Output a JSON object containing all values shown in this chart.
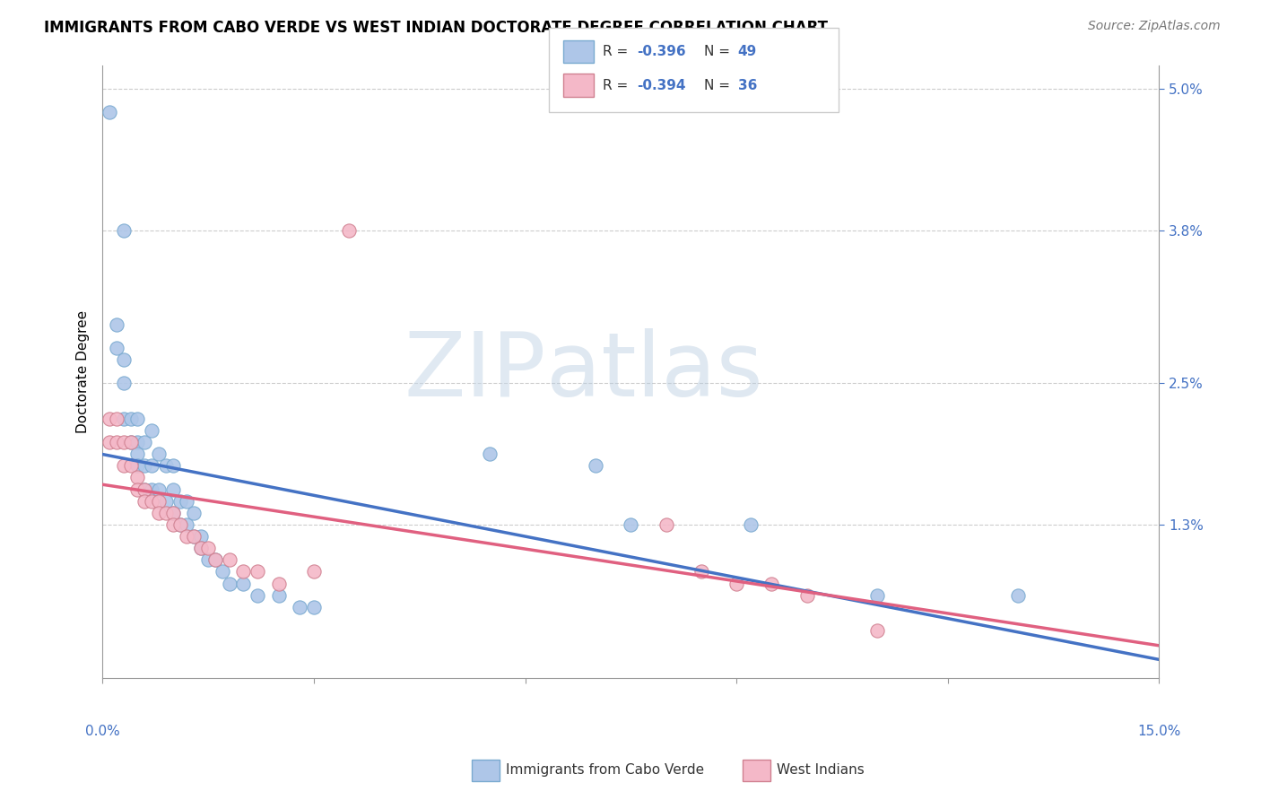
{
  "title": "IMMIGRANTS FROM CABO VERDE VS WEST INDIAN DOCTORATE DEGREE CORRELATION CHART",
  "source": "Source: ZipAtlas.com",
  "ylabel": "Doctorate Degree",
  "ytick_vals": [
    0.0,
    0.013,
    0.025,
    0.038,
    0.05
  ],
  "ytick_labels": [
    "",
    "1.3%",
    "2.5%",
    "3.8%",
    "5.0%"
  ],
  "xlim": [
    0.0,
    0.15
  ],
  "ylim": [
    0.0,
    0.052
  ],
  "color_blue": "#aec6e8",
  "color_blue_edge": "#7aaad0",
  "color_blue_line": "#4472c4",
  "color_pink": "#f4b8c8",
  "color_pink_edge": "#d08090",
  "color_pink_line": "#e06080",
  "color_label": "#4472c4",
  "cabo_verde_x": [
    0.001,
    0.002,
    0.002,
    0.003,
    0.003,
    0.003,
    0.003,
    0.004,
    0.004,
    0.005,
    0.005,
    0.005,
    0.005,
    0.006,
    0.006,
    0.006,
    0.007,
    0.007,
    0.007,
    0.008,
    0.008,
    0.009,
    0.009,
    0.01,
    0.01,
    0.01,
    0.011,
    0.011,
    0.012,
    0.012,
    0.013,
    0.013,
    0.014,
    0.014,
    0.015,
    0.016,
    0.017,
    0.018,
    0.02,
    0.022,
    0.025,
    0.028,
    0.03,
    0.055,
    0.07,
    0.075,
    0.092,
    0.11,
    0.13
  ],
  "cabo_verde_y": [
    0.048,
    0.03,
    0.028,
    0.038,
    0.027,
    0.025,
    0.022,
    0.022,
    0.02,
    0.022,
    0.02,
    0.019,
    0.018,
    0.02,
    0.018,
    0.016,
    0.021,
    0.018,
    0.016,
    0.019,
    0.016,
    0.018,
    0.015,
    0.018,
    0.016,
    0.014,
    0.015,
    0.013,
    0.015,
    0.013,
    0.014,
    0.012,
    0.012,
    0.011,
    0.01,
    0.01,
    0.009,
    0.008,
    0.008,
    0.007,
    0.007,
    0.006,
    0.006,
    0.019,
    0.018,
    0.013,
    0.013,
    0.007,
    0.007
  ],
  "west_indian_x": [
    0.001,
    0.001,
    0.002,
    0.002,
    0.003,
    0.003,
    0.004,
    0.004,
    0.005,
    0.005,
    0.006,
    0.006,
    0.007,
    0.008,
    0.008,
    0.009,
    0.01,
    0.01,
    0.011,
    0.012,
    0.013,
    0.014,
    0.015,
    0.016,
    0.018,
    0.02,
    0.022,
    0.025,
    0.03,
    0.035,
    0.08,
    0.085,
    0.09,
    0.095,
    0.1,
    0.11
  ],
  "west_indian_y": [
    0.022,
    0.02,
    0.022,
    0.02,
    0.02,
    0.018,
    0.02,
    0.018,
    0.017,
    0.016,
    0.016,
    0.015,
    0.015,
    0.015,
    0.014,
    0.014,
    0.014,
    0.013,
    0.013,
    0.012,
    0.012,
    0.011,
    0.011,
    0.01,
    0.01,
    0.009,
    0.009,
    0.008,
    0.009,
    0.038,
    0.013,
    0.009,
    0.008,
    0.008,
    0.007,
    0.004
  ],
  "legend_r1": "R = -0.396",
  "legend_n1": "N = 49",
  "legend_r2": "R = -0.394",
  "legend_n2": "N = 36",
  "watermark_zip": "ZIP",
  "watermark_atlas": "atlas",
  "bottom_label1": "Immigrants from Cabo Verde",
  "bottom_label2": "West Indians"
}
